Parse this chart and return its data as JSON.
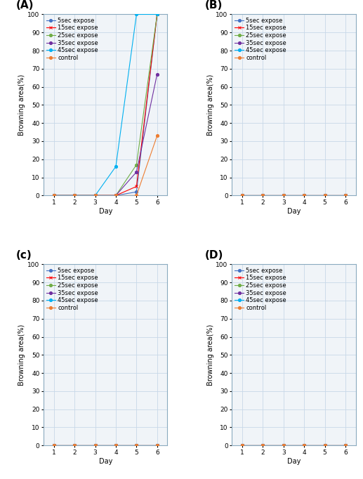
{
  "days": [
    1,
    2,
    3,
    4,
    5,
    6
  ],
  "series_labels": [
    "5sec expose",
    "15sec expose",
    "25sec expose",
    "35sec expose",
    "45sec expose",
    "control"
  ],
  "series_colors": [
    "#4472C4",
    "#FF0000",
    "#70AD47",
    "#7030A0",
    "#00B0F0",
    "#ED7D31"
  ],
  "series_markers": [
    "o",
    "x",
    "o",
    "o",
    "o",
    "o"
  ],
  "panel_labels": [
    "(A)",
    "(B)",
    "(c)",
    "(D)"
  ],
  "panel_A_data": [
    [
      0,
      0,
      0,
      0,
      2,
      100
    ],
    [
      0,
      0,
      0,
      0,
      5,
      100
    ],
    [
      0,
      0,
      0,
      0,
      17,
      100
    ],
    [
      0,
      0,
      0,
      0,
      13,
      67
    ],
    [
      0,
      0,
      0,
      16,
      100,
      100
    ],
    [
      0,
      0,
      0,
      0,
      0,
      33
    ]
  ],
  "panel_B_data": [
    [
      0,
      0,
      0,
      0,
      0,
      0
    ],
    [
      0,
      0,
      0,
      0,
      0,
      0
    ],
    [
      0,
      0,
      0,
      0,
      0,
      0
    ],
    [
      0,
      0,
      0,
      0,
      0,
      0
    ],
    [
      0,
      0,
      0,
      0,
      0,
      0
    ],
    [
      0,
      0,
      0,
      0,
      0,
      0
    ]
  ],
  "panel_C_data": [
    [
      0,
      0,
      0,
      0,
      0,
      0
    ],
    [
      0,
      0,
      0,
      0,
      0,
      0
    ],
    [
      0,
      0,
      0,
      0,
      0,
      0
    ],
    [
      0,
      0,
      0,
      0,
      0,
      0
    ],
    [
      0,
      0,
      0,
      0,
      0,
      0
    ],
    [
      0,
      0,
      0,
      0,
      0,
      0
    ]
  ],
  "panel_D_data": [
    [
      0,
      0,
      0,
      0,
      0,
      0
    ],
    [
      0,
      0,
      0,
      0,
      0,
      0
    ],
    [
      0,
      0,
      0,
      0,
      0,
      0
    ],
    [
      0,
      0,
      0,
      0,
      0,
      0
    ],
    [
      0,
      0,
      0,
      0,
      0,
      0
    ],
    [
      0,
      0,
      0,
      0,
      0,
      0
    ]
  ],
  "ylabel": "Browning area(%)",
  "xlabel": "Day",
  "ylim": [
    0,
    100
  ],
  "yticks": [
    0,
    10,
    20,
    30,
    40,
    50,
    60,
    70,
    80,
    90,
    100
  ],
  "xticks": [
    1,
    2,
    3,
    4,
    5,
    6
  ],
  "grid_color": "#C8D8E8",
  "bg_color": "#FFFFFF",
  "plot_bg_color": "#F0F4F8",
  "spine_color": "#8AAABF",
  "label_fontsize": 7,
  "tick_fontsize": 6.5,
  "legend_fontsize": 6,
  "panel_label_fontsize": 11
}
